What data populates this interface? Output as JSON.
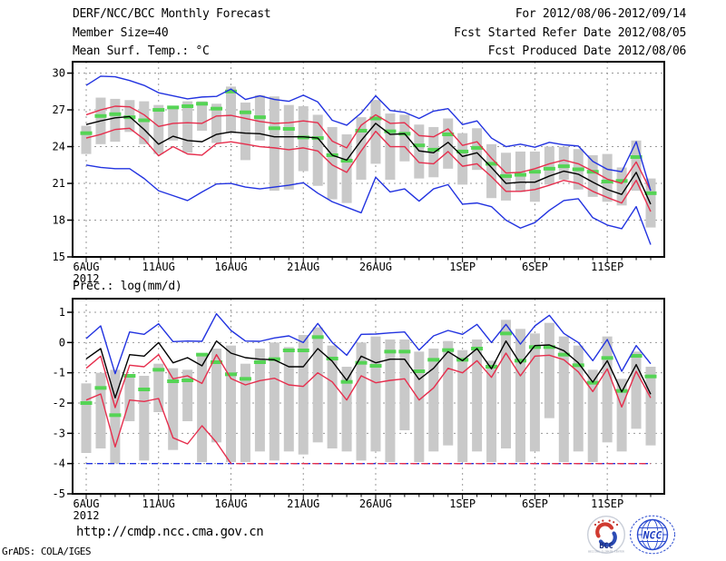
{
  "header": {
    "title": "DERF/NCC/BCC Monthly Forecast",
    "member_size": "Member Size=40",
    "temp_label": "Mean Surf. Temp.: °C",
    "for_range": "For 2012/08/06-2012/09/14",
    "refer_date": "Fcst Started Refer Date 2012/08/05",
    "produced_date": "Fcst Produced Date 2012/08/06"
  },
  "prec_label": "Prec.: log(mm/d)",
  "footer": {
    "url": "http://cmdp.ncc.cma.gov.cn",
    "credit": "GrADS: COLA/IGES",
    "logos": {
      "bcc": "BCC",
      "ncc": "NCC"
    }
  },
  "colors": {
    "blue": "#2233e0",
    "red": "#e62e4d",
    "black": "#000000",
    "green": "#55d455",
    "bar": "#c9c9c9",
    "grid": "#999999"
  },
  "chart_data": [
    {
      "id": "temp",
      "type": "line",
      "title": "Mean Surf. Temp.: °C",
      "ylabel": "°C",
      "days": 40,
      "ymin": 15,
      "ymax": 30.93,
      "yticks": [
        30,
        27,
        24,
        21,
        18,
        15
      ],
      "ygrid": [
        30,
        27,
        24,
        21,
        18
      ],
      "xticks": [
        {
          "day": 0,
          "label": "6AUG",
          "sublabel": "2012"
        },
        {
          "day": 5,
          "label": "11AUG"
        },
        {
          "day": 10,
          "label": "16AUG"
        },
        {
          "day": 15,
          "label": "21AUG"
        },
        {
          "day": 20,
          "label": "26AUG"
        },
        {
          "day": 26,
          "label": "1SEP"
        },
        {
          "day": 31,
          "label": "6SEP"
        },
        {
          "day": 36,
          "label": "11SEP"
        }
      ],
      "series": {
        "blue_hi": [
          29.0,
          29.75,
          29.7,
          29.4,
          29.0,
          28.4,
          28.15,
          27.9,
          28.05,
          28.1,
          28.7,
          27.85,
          28.15,
          27.85,
          27.7,
          28.2,
          27.65,
          26.15,
          25.75,
          26.75,
          28.15,
          26.95,
          26.8,
          26.3,
          26.9,
          27.1,
          25.8,
          26.1,
          24.7,
          24.0,
          24.2,
          23.95,
          24.35,
          24.15,
          24.05,
          22.8,
          22.15,
          21.95,
          24.4,
          20.4
        ],
        "red_hi": [
          26.6,
          27.0,
          27.3,
          27.25,
          26.6,
          25.65,
          25.9,
          25.95,
          25.9,
          26.5,
          26.55,
          26.3,
          26.05,
          25.9,
          25.95,
          26.1,
          25.95,
          24.45,
          23.9,
          25.75,
          26.6,
          25.9,
          25.95,
          24.9,
          24.8,
          25.45,
          24.1,
          24.4,
          23.05,
          21.85,
          21.9,
          22.2,
          22.6,
          22.9,
          22.6,
          22.0,
          21.35,
          21.0,
          22.75,
          20.4
        ],
        "black": [
          25.8,
          26.1,
          26.35,
          26.45,
          25.4,
          24.2,
          24.85,
          24.5,
          24.4,
          25.0,
          25.2,
          25.1,
          25.05,
          24.8,
          24.8,
          24.8,
          24.7,
          23.3,
          22.9,
          24.5,
          25.9,
          25.0,
          25.05,
          23.65,
          23.5,
          24.35,
          23.2,
          23.5,
          22.3,
          21.0,
          21.1,
          21.1,
          21.6,
          22.0,
          21.75,
          21.1,
          20.5,
          20.1,
          21.9,
          19.3
        ],
        "green": [
          25.1,
          26.5,
          26.65,
          26.4,
          26.15,
          27.0,
          27.2,
          27.3,
          27.5,
          27.1,
          28.5,
          26.8,
          26.4,
          25.5,
          25.45,
          24.75,
          24.7,
          23.3,
          22.85,
          25.3,
          26.3,
          25.25,
          25.05,
          24.1,
          23.75,
          25.0,
          23.6,
          23.9,
          22.6,
          21.6,
          21.7,
          21.95,
          22.2,
          22.4,
          22.15,
          21.95,
          21.15,
          21.2,
          23.15,
          20.2
        ],
        "red_lo": [
          24.7,
          25.0,
          25.4,
          25.5,
          24.6,
          23.25,
          24.0,
          23.4,
          23.3,
          24.25,
          24.4,
          24.2,
          24.0,
          23.9,
          23.75,
          23.9,
          23.65,
          22.5,
          21.9,
          23.65,
          25.25,
          24.0,
          24.0,
          22.7,
          22.6,
          23.6,
          22.4,
          22.6,
          21.55,
          20.35,
          20.35,
          20.5,
          20.85,
          21.25,
          21.0,
          20.35,
          19.85,
          19.4,
          21.25,
          18.7
        ],
        "blue_lo": [
          22.5,
          22.3,
          22.2,
          22.2,
          21.4,
          20.4,
          20.0,
          19.6,
          20.3,
          20.95,
          21.0,
          20.7,
          20.55,
          20.7,
          20.85,
          21.05,
          20.2,
          19.5,
          19.05,
          18.6,
          21.5,
          20.3,
          20.55,
          19.55,
          20.55,
          20.9,
          19.3,
          19.4,
          19.1,
          18.0,
          17.35,
          17.8,
          18.8,
          19.6,
          19.75,
          18.2,
          17.6,
          17.3,
          19.1,
          16.0
        ]
      },
      "bars": {
        "top": [
          25.7,
          28.0,
          27.9,
          27.8,
          27.7,
          27.4,
          27.3,
          27.7,
          27.7,
          27.5,
          28.9,
          27.6,
          28.2,
          28.1,
          27.4,
          27.3,
          26.6,
          25.6,
          25.0,
          26.4,
          27.8,
          26.7,
          26.6,
          25.8,
          25.6,
          26.3,
          25.1,
          25.5,
          24.2,
          23.5,
          23.6,
          23.6,
          24.0,
          24.0,
          23.8,
          23.3,
          23.4,
          22.3,
          24.5,
          21.4
        ],
        "bottom": [
          23.4,
          24.2,
          24.4,
          25.2,
          24.2,
          23.4,
          24.5,
          23.5,
          25.3,
          24.3,
          25.1,
          22.9,
          24.5,
          20.4,
          20.5,
          22.0,
          20.8,
          19.7,
          19.4,
          21.3,
          22.6,
          21.3,
          22.8,
          21.4,
          21.5,
          22.2,
          20.9,
          22.1,
          19.8,
          19.6,
          20.3,
          19.5,
          20.9,
          21.3,
          20.5,
          19.9,
          19.5,
          19.2,
          20.4,
          17.4
        ]
      }
    },
    {
      "id": "prec",
      "type": "line",
      "title": "Prec.: log(mm/d)",
      "ylabel": "log(mm/d)",
      "days": 40,
      "ymin": -5,
      "ymax": 1.45,
      "floor": -4,
      "yticks": [
        1,
        0,
        -1,
        -2,
        -3,
        -4,
        -5
      ],
      "ygrid": [
        1,
        0,
        -1,
        -2,
        -3,
        -4
      ],
      "xticks": [
        {
          "day": 0,
          "label": "6AUG",
          "sublabel": "2012"
        },
        {
          "day": 5,
          "label": "11AUG"
        },
        {
          "day": 10,
          "label": "16AUG"
        },
        {
          "day": 15,
          "label": "21AUG"
        },
        {
          "day": 20,
          "label": "26AUG"
        },
        {
          "day": 26,
          "label": "1SEP"
        },
        {
          "day": 31,
          "label": "6SEP"
        },
        {
          "day": 36,
          "label": "11SEP"
        }
      ],
      "series": {
        "blue_hi": [
          0.13,
          0.55,
          -1.03,
          0.35,
          0.27,
          0.62,
          0.03,
          0.05,
          0.04,
          0.95,
          0.4,
          0.05,
          0.04,
          0.15,
          0.22,
          0.0,
          0.63,
          0.0,
          -0.42,
          0.27,
          0.28,
          0.32,
          0.35,
          -0.25,
          0.22,
          0.4,
          0.27,
          0.6,
          0.0,
          0.6,
          -0.05,
          0.55,
          0.9,
          0.3,
          0.0,
          -0.6,
          0.1,
          -0.95,
          -0.1,
          -0.7
        ],
        "black": [
          -0.54,
          -0.2,
          -1.83,
          -0.4,
          -0.45,
          0.0,
          -0.67,
          -0.5,
          -0.77,
          0.05,
          -0.35,
          -0.5,
          -0.55,
          -0.57,
          -0.8,
          -0.8,
          -0.2,
          -0.62,
          -1.25,
          -0.45,
          -0.67,
          -0.55,
          -0.55,
          -1.22,
          -0.85,
          -0.3,
          -0.6,
          -0.2,
          -0.87,
          0.05,
          -0.7,
          -0.1,
          -0.08,
          -0.27,
          -0.67,
          -1.31,
          -0.6,
          -1.63,
          -0.73,
          -1.71
        ],
        "red_hi": [
          -0.85,
          -0.45,
          -2.15,
          -0.75,
          -0.8,
          -0.4,
          -1.2,
          -1.1,
          -1.35,
          -0.4,
          -1.19,
          -1.4,
          -1.26,
          -1.18,
          -1.4,
          -1.45,
          -1.0,
          -1.3,
          -1.9,
          -1.1,
          -1.33,
          -1.25,
          -1.2,
          -1.9,
          -1.5,
          -0.85,
          -1.0,
          -0.6,
          -1.15,
          -0.35,
          -1.1,
          -0.45,
          -0.42,
          -0.57,
          -0.97,
          -1.62,
          -0.87,
          -2.13,
          -0.95,
          -1.83
        ],
        "green": [
          -2.0,
          -1.5,
          -2.4,
          -1.1,
          -1.55,
          -0.9,
          -1.28,
          -1.25,
          -0.4,
          -0.65,
          -1.05,
          -1.2,
          -0.65,
          -0.55,
          -0.26,
          -0.26,
          0.18,
          -0.53,
          -1.3,
          -0.67,
          -0.77,
          -0.3,
          -0.3,
          -0.95,
          -0.57,
          -0.25,
          -0.57,
          -0.2,
          -0.8,
          0.3,
          -0.6,
          -0.15,
          -0.15,
          -0.4,
          -0.75,
          -1.33,
          -0.51,
          -1.6,
          -0.44,
          -1.12
        ],
        "red_lo": [
          -1.9,
          -1.7,
          -3.45,
          -1.9,
          -1.95,
          -1.85,
          -3.15,
          -3.35,
          -2.75,
          -3.3,
          -4,
          -4,
          -4,
          -4,
          -4,
          -4,
          -4,
          -4,
          -4,
          -4,
          -4,
          -4,
          -4,
          -4,
          -4,
          -4,
          -4,
          -4,
          -4,
          -4,
          -4,
          -4,
          -4,
          -4,
          -4,
          -4,
          -4,
          -4,
          -4,
          -4
        ],
        "blue_lo": [
          -4,
          -4,
          -4,
          -4,
          -4,
          -4,
          -4,
          -4,
          -4,
          -4,
          -4,
          -4,
          -4,
          -4,
          -4,
          -4,
          -4,
          -4,
          -4,
          -4,
          -4,
          -4,
          -4,
          -4,
          -4,
          -4,
          -4,
          -4,
          -4,
          -4,
          -4,
          -4,
          -4,
          -4,
          -4,
          -4,
          -4,
          -4,
          -4,
          -4
        ]
      },
      "bars": {
        "top": [
          -1.35,
          -1.0,
          -0.9,
          -1.05,
          -1.1,
          -0.7,
          -0.85,
          -0.9,
          -0.45,
          -0.2,
          -0.1,
          -0.7,
          -0.2,
          0.0,
          -0.15,
          0.25,
          0.5,
          -0.1,
          -0.8,
          0.0,
          0.2,
          0.1,
          0.1,
          -0.3,
          -0.2,
          0.05,
          -0.25,
          0.1,
          -0.6,
          0.75,
          0.45,
          0.3,
          0.65,
          0.2,
          -0.1,
          -0.9,
          0.2,
          -1.2,
          -0.3,
          -0.8
        ],
        "bottom": [
          -3.65,
          -3.5,
          -4.0,
          -2.6,
          -3.9,
          -2.3,
          -3.55,
          -2.6,
          -3.95,
          -3.3,
          -3.95,
          -3.95,
          -3.6,
          -3.9,
          -3.6,
          -3.7,
          -3.3,
          -3.5,
          -3.6,
          -3.9,
          -3.6,
          -3.95,
          -2.9,
          -3.95,
          -3.6,
          -3.4,
          -3.95,
          -3.6,
          -3.95,
          -3.5,
          -3.95,
          -3.6,
          -2.5,
          -3.95,
          -3.6,
          -3.95,
          -3.3,
          -3.6,
          -2.85,
          -3.4
        ]
      }
    }
  ]
}
